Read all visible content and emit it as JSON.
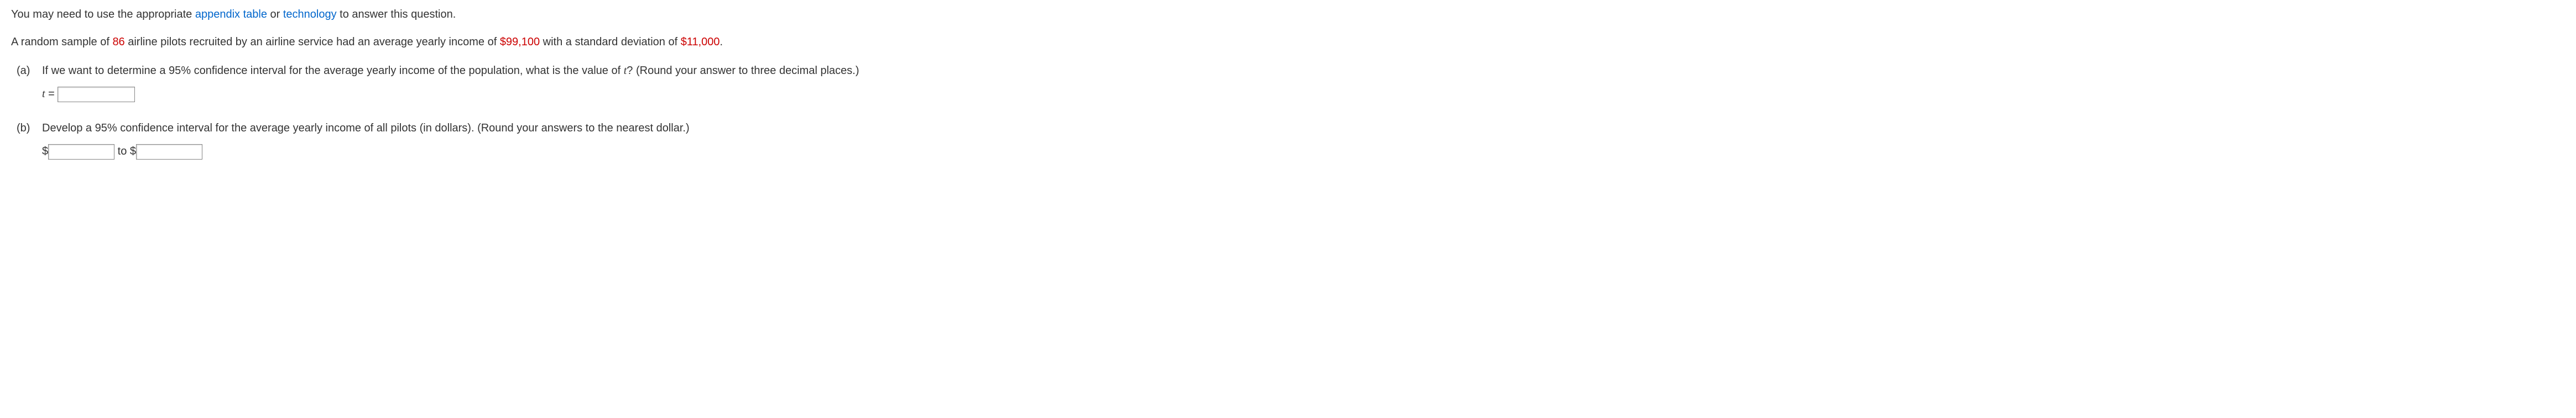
{
  "intro": {
    "pre": "You may need to use the appropriate ",
    "link1": "appendix table",
    "mid": " or ",
    "link2": "technology",
    "post": " to answer this question."
  },
  "prompt": {
    "p1": "A random sample of ",
    "n": "86",
    "p2": " airline pilots recruited by an airline service had an average yearly income of ",
    "mean": "$99,100",
    "p3": " with a standard deviation of ",
    "sd": "$11,000",
    "p4": "."
  },
  "qa": {
    "label": "(a)",
    "text_pre": "If we want to determine a 95% confidence interval for the average yearly income of the population, what is the value of ",
    "tvar": "t",
    "text_post": "? (Round your answer to three decimal places.)",
    "eq_left": "t",
    "eq_eq": " = "
  },
  "qb": {
    "label": "(b)",
    "text": "Develop a 95% confidence interval for the average yearly income of all pilots (in dollars). (Round your answers to the nearest dollar.)",
    "dollar": "$",
    "to": " to $"
  }
}
